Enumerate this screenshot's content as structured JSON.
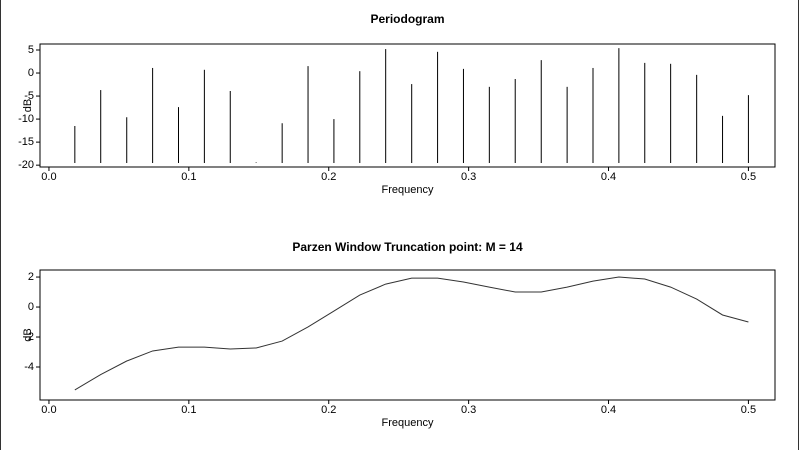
{
  "chart_data": [
    {
      "type": "spikes",
      "title": "Periodogram",
      "x_label": "Frequency",
      "y_label": "dB",
      "color": "#000000",
      "x": [
        0.0185,
        0.037,
        0.0556,
        0.0741,
        0.0926,
        0.1111,
        0.1296,
        0.1481,
        0.1667,
        0.1852,
        0.2037,
        0.2222,
        0.2407,
        0.2593,
        0.2778,
        0.2963,
        0.3148,
        0.3333,
        0.3519,
        0.3704,
        0.3889,
        0.4074,
        0.4259,
        0.4444,
        0.463,
        0.4815,
        0.5
      ],
      "values": [
        -11.5,
        -3.7,
        -9.6,
        1.1,
        -7.4,
        0.7,
        -3.9,
        -19.4,
        -10.9,
        1.5,
        -10,
        0.4,
        5.2,
        -2.4,
        4.6,
        0.9,
        -3,
        -1.3,
        2.8,
        -3,
        1.1,
        5.4,
        2.2,
        2,
        -0.4,
        -9.3,
        -4.8
      ],
      "xlim": [
        -0.0064,
        0.519
      ],
      "ylim": [
        -20.4,
        6.3
      ],
      "xticks": [
        {
          "value": 0,
          "label": "0.0"
        },
        0.1,
        0.2,
        0.3,
        0.4,
        0.5
      ],
      "yticks": [
        -20,
        -15,
        -10,
        -5,
        0,
        5
      ]
    },
    {
      "type": "line",
      "title": "Parzen Window Truncation point: M = 14",
      "x_label": "Frequency",
      "y_label": "dB",
      "color": "#333333",
      "x": [
        0.0185,
        0.037,
        0.0556,
        0.0741,
        0.0926,
        0.1111,
        0.1296,
        0.1481,
        0.1667,
        0.1852,
        0.2037,
        0.2222,
        0.2407,
        0.2593,
        0.2778,
        0.2963,
        0.3148,
        0.3333,
        0.3519,
        0.3704,
        0.3889,
        0.4074,
        0.4259,
        0.4444,
        0.463,
        0.4815,
        0.5
      ],
      "values": [
        -5.53,
        -4.5,
        -3.6,
        -2.93,
        -2.67,
        -2.67,
        -2.8,
        -2.73,
        -2.27,
        -1.33,
        -0.27,
        0.8,
        1.53,
        1.93,
        1.93,
        1.67,
        1.33,
        1.0,
        1.0,
        1.33,
        1.73,
        2.0,
        1.87,
        1.33,
        0.53,
        -0.53,
        -1.0
      ],
      "xlim": [
        -0.0064,
        0.519
      ],
      "ylim": [
        -6.2,
        2.47
      ],
      "xticks": [
        {
          "value": 0,
          "label": "0.0"
        },
        0.1,
        0.2,
        0.3,
        0.4,
        0.5
      ],
      "yticks": [
        -4,
        -2,
        0,
        2
      ]
    }
  ]
}
